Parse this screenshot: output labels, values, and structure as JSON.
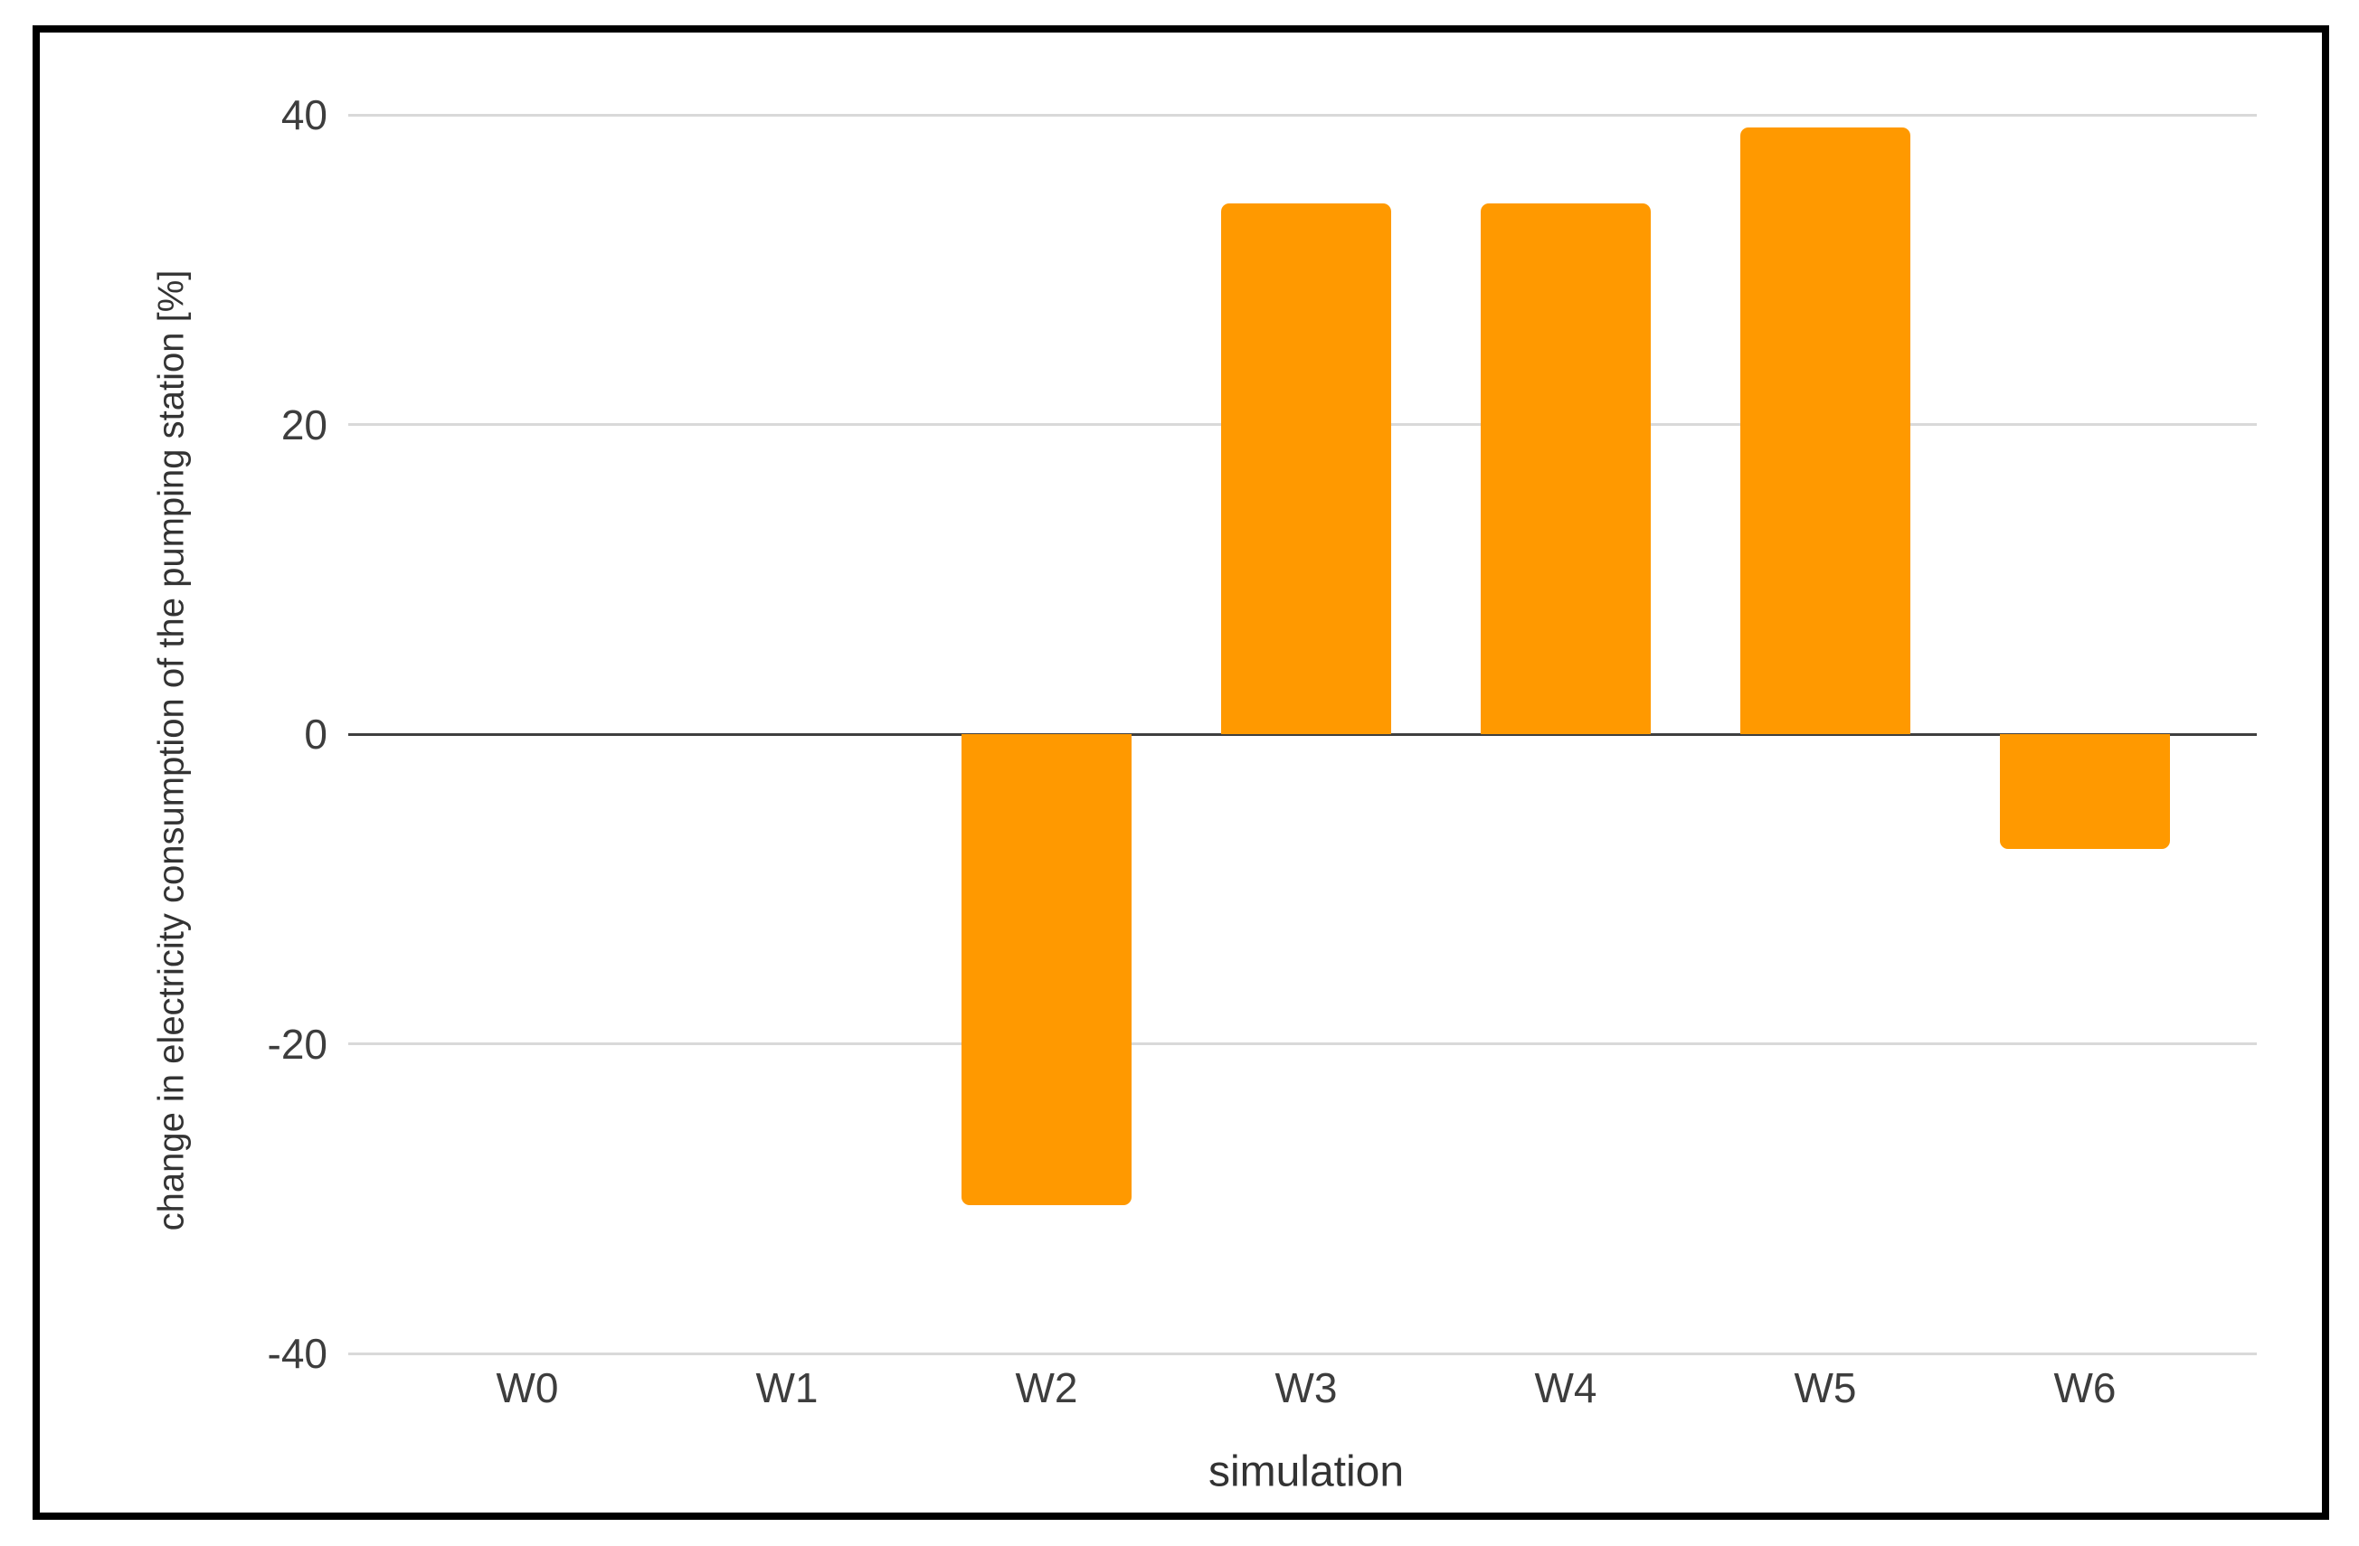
{
  "figure": {
    "background_color": "#ffffff",
    "frame_color": "#000000"
  },
  "chart_data": {
    "type": "bar",
    "title": "",
    "categories": [
      "W0",
      "W1",
      "W2",
      "W3",
      "W4",
      "W5",
      "W6"
    ],
    "values": [
      0,
      0,
      -30.4,
      34.3,
      34.3,
      39.2,
      -7.4
    ],
    "xlabel": "simulation",
    "ylabel": "change in electricity consumption of the pumping station [%]",
    "ylim": [
      -40,
      40
    ],
    "yticks": [
      40,
      20,
      0,
      -20,
      -40
    ],
    "grid": true,
    "legend_position": "none",
    "bar_color": "#FF9900",
    "gridline_color": "#d9d9d9",
    "zero_line_color": "#3f3f3f",
    "text_color": "#3d3d3d"
  }
}
